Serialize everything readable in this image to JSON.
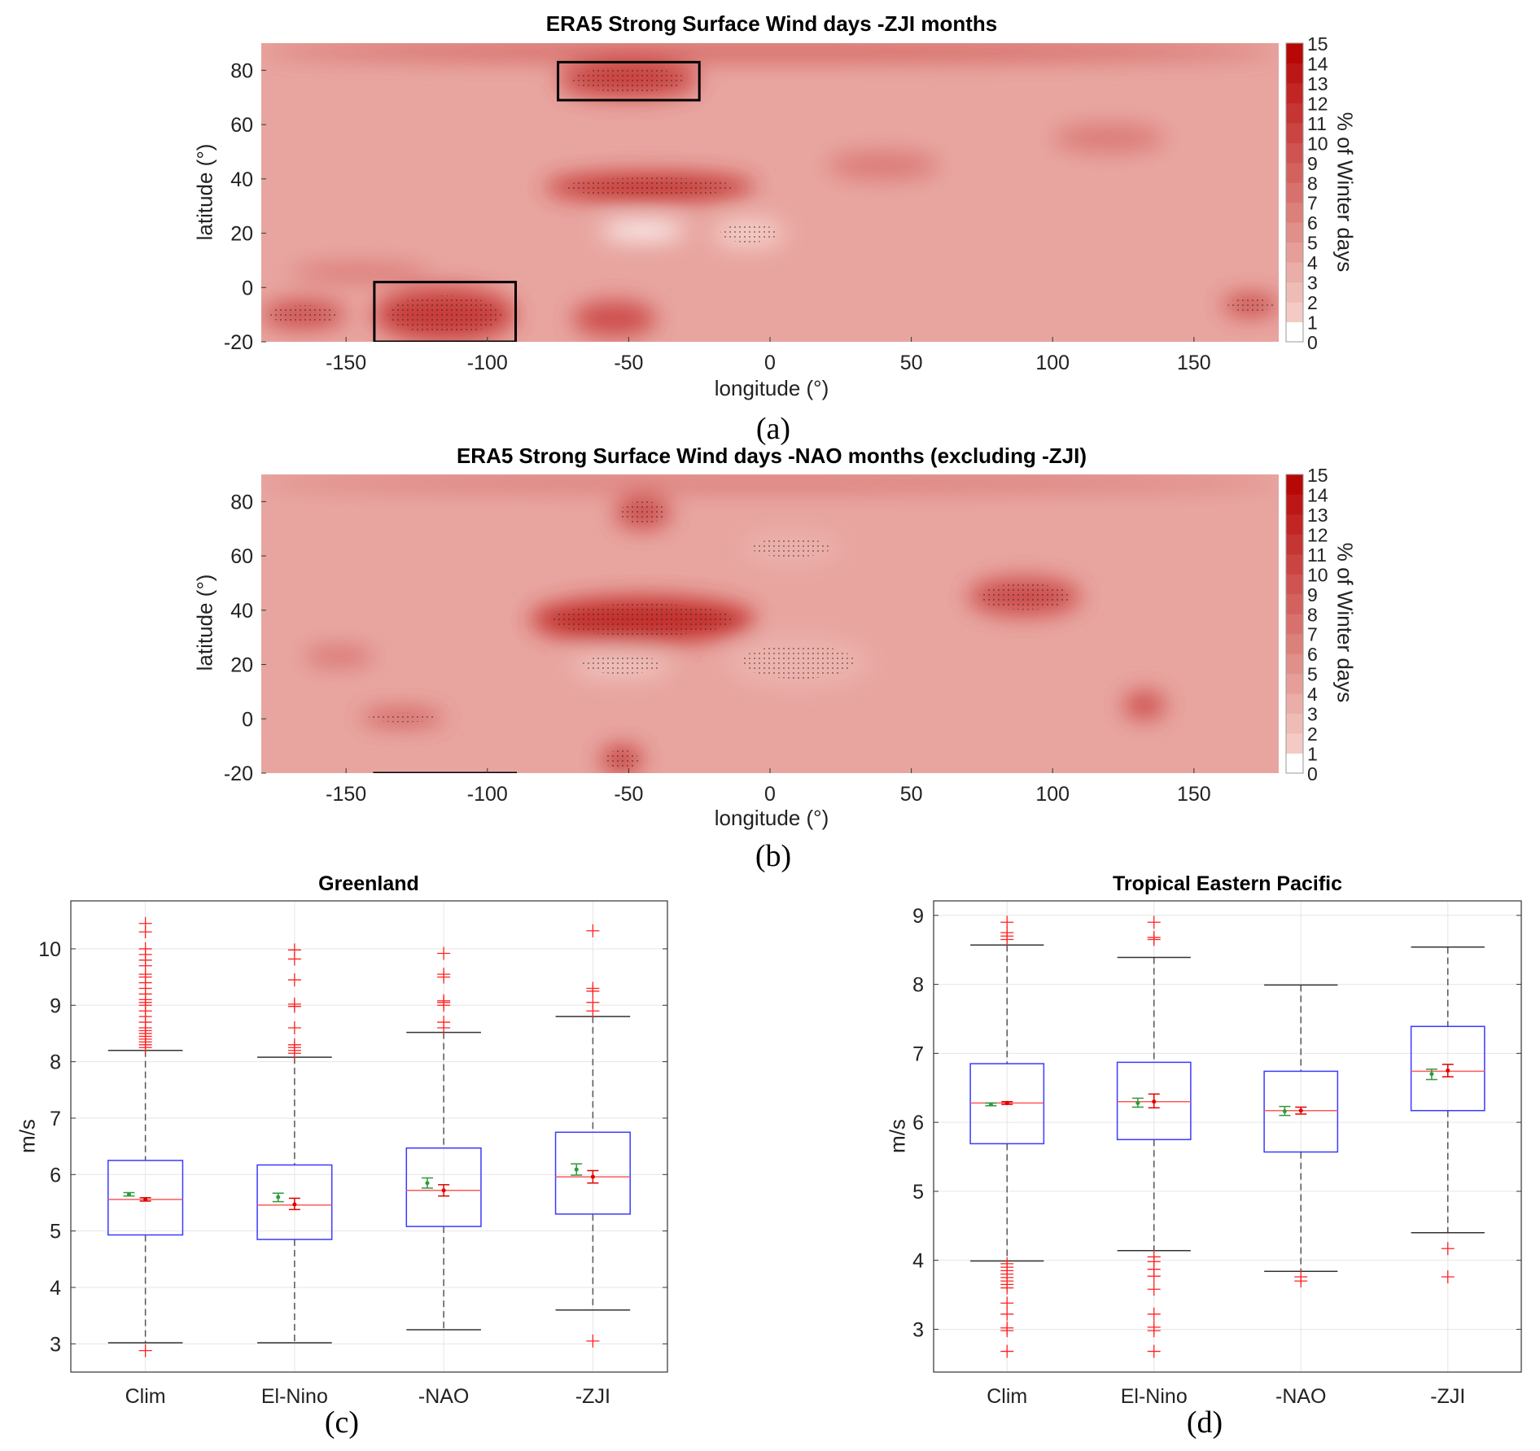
{
  "chart_data": [
    {
      "type": "heatmap",
      "panel_label": "(a)",
      "title": "ERA5 Strong Surface Wind days -ZJI months",
      "xlabel": "longitude (°)",
      "ylabel": "latitude (°)",
      "xlim": [
        -180,
        180
      ],
      "ylim": [
        -20,
        90
      ],
      "xticks": [
        -150,
        -100,
        -50,
        0,
        50,
        100,
        150
      ],
      "yticks": [
        -20,
        0,
        20,
        40,
        60,
        80
      ],
      "colorbar": {
        "label": "% of Winter days",
        "min": 0,
        "max": 15,
        "ticks": [
          0,
          1,
          2,
          3,
          4,
          5,
          6,
          7,
          8,
          9,
          10,
          11,
          12,
          13,
          14,
          15
        ],
        "low_color": "#ffffff",
        "high_color": "#b50000"
      },
      "background_value": 4,
      "hotspots": [
        {
          "lon": [
            -80,
            -5
          ],
          "lat": [
            32,
            42
          ],
          "value": 12,
          "stippled": true
        },
        {
          "lon": [
            -140,
            -90
          ],
          "lat": [
            -20,
            0
          ],
          "value": 11,
          "stippled": true
        },
        {
          "lon": [
            -75,
            -25
          ],
          "lat": [
            70,
            83
          ],
          "value": 11,
          "stippled": true
        },
        {
          "lon": [
            -70,
            -40
          ],
          "lat": [
            -18,
            -5
          ],
          "value": 10,
          "stippled": false
        },
        {
          "lon": [
            -180,
            180
          ],
          "lat": [
            84,
            90
          ],
          "value": 9,
          "stippled": false
        },
        {
          "lon": [
            -180,
            -150
          ],
          "lat": [
            -15,
            -5
          ],
          "value": 10,
          "stippled": true
        },
        {
          "lon": [
            160,
            180
          ],
          "lat": [
            -10,
            -3
          ],
          "value": 11,
          "stippled": true
        },
        {
          "lon": [
            -170,
            -120
          ],
          "lat": [
            3,
            8
          ],
          "value": 8,
          "stippled": false
        },
        {
          "lon": [
            20,
            60
          ],
          "lat": [
            40,
            50
          ],
          "value": 7,
          "stippled": false
        },
        {
          "lon": [
            100,
            140
          ],
          "lat": [
            50,
            60
          ],
          "value": 7,
          "stippled": false
        },
        {
          "lon": [
            -60,
            -30
          ],
          "lat": [
            18,
            24
          ],
          "value": 0,
          "stippled": false
        },
        {
          "lon": [
            -20,
            5
          ],
          "lat": [
            15,
            25
          ],
          "value": 1,
          "stippled": true
        }
      ],
      "boxes": [
        {
          "lon": [
            -75,
            -25
          ],
          "lat": [
            69,
            83
          ]
        },
        {
          "lon": [
            -140,
            -90
          ],
          "lat": [
            -20,
            2
          ]
        }
      ]
    },
    {
      "type": "heatmap",
      "panel_label": "(b)",
      "title": "ERA5 Strong Surface Wind days -NAO months (excluding -ZJI)",
      "xlabel": "longitude (°)",
      "ylabel": "latitude (°)",
      "xlim": [
        -180,
        180
      ],
      "ylim": [
        -20,
        90
      ],
      "xticks": [
        -150,
        -100,
        -50,
        0,
        50,
        100,
        150
      ],
      "yticks": [
        -20,
        0,
        20,
        40,
        60,
        80
      ],
      "colorbar": {
        "label": "% of Winter days",
        "min": 0,
        "max": 15,
        "ticks": [
          0,
          1,
          2,
          3,
          4,
          5,
          6,
          7,
          8,
          9,
          10,
          11,
          12,
          13,
          14,
          15
        ],
        "low_color": "#ffffff",
        "high_color": "#b50000"
      },
      "background_value": 4,
      "hotspots": [
        {
          "lon": [
            -85,
            -5
          ],
          "lat": [
            28,
            45
          ],
          "value": 12,
          "stippled": true
        },
        {
          "lon": [
            -55,
            -35
          ],
          "lat": [
            70,
            82
          ],
          "value": 10,
          "stippled": true
        },
        {
          "lon": [
            70,
            110
          ],
          "lat": [
            38,
            52
          ],
          "value": 10,
          "stippled": true
        },
        {
          "lon": [
            -60,
            -45
          ],
          "lat": [
            -20,
            -10
          ],
          "value": 11,
          "stippled": true
        },
        {
          "lon": [
            -145,
            -115
          ],
          "lat": [
            -2,
            3
          ],
          "value": 10,
          "stippled": true
        },
        {
          "lon": [
            125,
            140
          ],
          "lat": [
            0,
            10
          ],
          "value": 10,
          "stippled": false
        },
        {
          "lon": [
            -165,
            -140
          ],
          "lat": [
            20,
            26
          ],
          "value": 8,
          "stippled": false
        },
        {
          "lon": [
            -180,
            180
          ],
          "lat": [
            84,
            90
          ],
          "value": 7,
          "stippled": false
        },
        {
          "lon": [
            -70,
            -35
          ],
          "lat": [
            15,
            25
          ],
          "value": 2,
          "stippled": true
        },
        {
          "lon": [
            -15,
            35
          ],
          "lat": [
            12,
            30
          ],
          "value": 3,
          "stippled": true
        },
        {
          "lon": [
            -10,
            25
          ],
          "lat": [
            58,
            68
          ],
          "value": 3,
          "stippled": true
        }
      ],
      "boxes": [
        {
          "lon": [
            -140,
            -90
          ],
          "lat": [
            -20,
            -20
          ]
        }
      ]
    },
    {
      "type": "box",
      "panel_label": "(c)",
      "title": "Greenland",
      "ylabel": "m/s",
      "categories": [
        "Clim",
        "El-Nino",
        "-NAO",
        "-ZJI"
      ],
      "ylim": [
        2.5,
        10.85
      ],
      "yticks": [
        3,
        4,
        5,
        6,
        7,
        8,
        9,
        10
      ],
      "grid": true,
      "boxes": [
        {
          "q1": 4.93,
          "median": 5.56,
          "q3": 6.25,
          "whisker_low": 3.02,
          "whisker_high": 8.2,
          "mean_red": 5.56,
          "mean_red_ci": [
            5.53,
            5.59
          ],
          "mean_green": 5.65,
          "mean_green_ci": [
            5.62,
            5.68
          ],
          "outliers": [
            2.88,
            8.25,
            8.3,
            8.35,
            8.4,
            8.45,
            8.5,
            8.55,
            8.6,
            8.7,
            8.8,
            8.9,
            9.0,
            9.05,
            9.1,
            9.2,
            9.3,
            9.4,
            9.5,
            9.55,
            9.7,
            9.8,
            9.9,
            10.0,
            10.3,
            10.45
          ]
        },
        {
          "q1": 4.85,
          "median": 5.46,
          "q3": 6.17,
          "whisker_low": 3.02,
          "whisker_high": 8.08,
          "mean_red": 5.47,
          "mean_red_ci": [
            5.38,
            5.58
          ],
          "mean_green": 5.6,
          "mean_green_ci": [
            5.52,
            5.67
          ],
          "outliers": [
            8.15,
            8.2,
            8.25,
            8.3,
            8.6,
            8.98,
            9.02,
            9.45,
            9.82,
            9.98
          ]
        },
        {
          "q1": 5.08,
          "median": 5.72,
          "q3": 6.47,
          "whisker_low": 3.25,
          "whisker_high": 8.52,
          "mean_red": 5.72,
          "mean_red_ci": [
            5.62,
            5.82
          ],
          "mean_green": 5.85,
          "mean_green_ci": [
            5.76,
            5.94
          ],
          "outliers": [
            8.6,
            8.7,
            9.0,
            9.05,
            9.08,
            9.5,
            9.55,
            9.92
          ]
        },
        {
          "q1": 5.3,
          "median": 5.96,
          "q3": 6.75,
          "whisker_low": 3.6,
          "whisker_high": 8.8,
          "mean_red": 5.96,
          "mean_red_ci": [
            5.85,
            6.07
          ],
          "mean_green": 6.09,
          "mean_green_ci": [
            5.99,
            6.19
          ],
          "outliers": [
            3.05,
            8.9,
            9.05,
            9.25,
            9.3,
            10.32
          ]
        }
      ]
    },
    {
      "type": "box",
      "panel_label": "(d)",
      "title": "Tropical Eastern Pacific",
      "ylabel": "m/s",
      "categories": [
        "Clim",
        "El-Nino",
        "-NAO",
        "-ZJI"
      ],
      "ylim": [
        2.38,
        9.21
      ],
      "yticks": [
        3,
        4,
        5,
        6,
        7,
        8,
        9
      ],
      "grid": true,
      "boxes": [
        {
          "q1": 5.69,
          "median": 6.28,
          "q3": 6.85,
          "whisker_low": 3.99,
          "whisker_high": 8.57,
          "mean_red": 6.28,
          "mean_red_ci": [
            6.26,
            6.3
          ],
          "mean_green": 6.26,
          "mean_green_ci": [
            6.24,
            6.28
          ],
          "outliers": [
            8.65,
            8.7,
            8.75,
            8.9,
            3.95,
            3.9,
            3.85,
            3.8,
            3.75,
            3.7,
            3.65,
            3.6,
            3.38,
            3.22,
            3.02,
            2.98,
            2.68
          ]
        },
        {
          "q1": 5.75,
          "median": 6.3,
          "q3": 6.87,
          "whisker_low": 4.14,
          "whisker_high": 8.39,
          "mean_red": 6.3,
          "mean_red_ci": [
            6.21,
            6.41
          ],
          "mean_green": 6.28,
          "mean_green_ci": [
            6.22,
            6.35
          ],
          "outliers": [
            8.65,
            8.68,
            8.9,
            4.05,
            3.98,
            3.87,
            3.77,
            3.58,
            3.22,
            3.03,
            2.98,
            2.68
          ]
        },
        {
          "q1": 5.57,
          "median": 6.17,
          "q3": 6.74,
          "whisker_low": 3.84,
          "whisker_high": 7.99,
          "mean_red": 6.17,
          "mean_red_ci": [
            6.12,
            6.22
          ],
          "mean_green": 6.16,
          "mean_green_ci": [
            6.1,
            6.23
          ],
          "outliers": [
            3.76,
            3.7
          ]
        },
        {
          "q1": 6.17,
          "median": 6.74,
          "q3": 7.39,
          "whisker_low": 4.4,
          "whisker_high": 8.54,
          "mean_red": 6.75,
          "mean_red_ci": [
            6.66,
            6.84
          ],
          "mean_green": 6.7,
          "mean_green_ci": [
            6.62,
            6.77
          ],
          "outliers": [
            4.17,
            3.76
          ]
        }
      ]
    }
  ]
}
